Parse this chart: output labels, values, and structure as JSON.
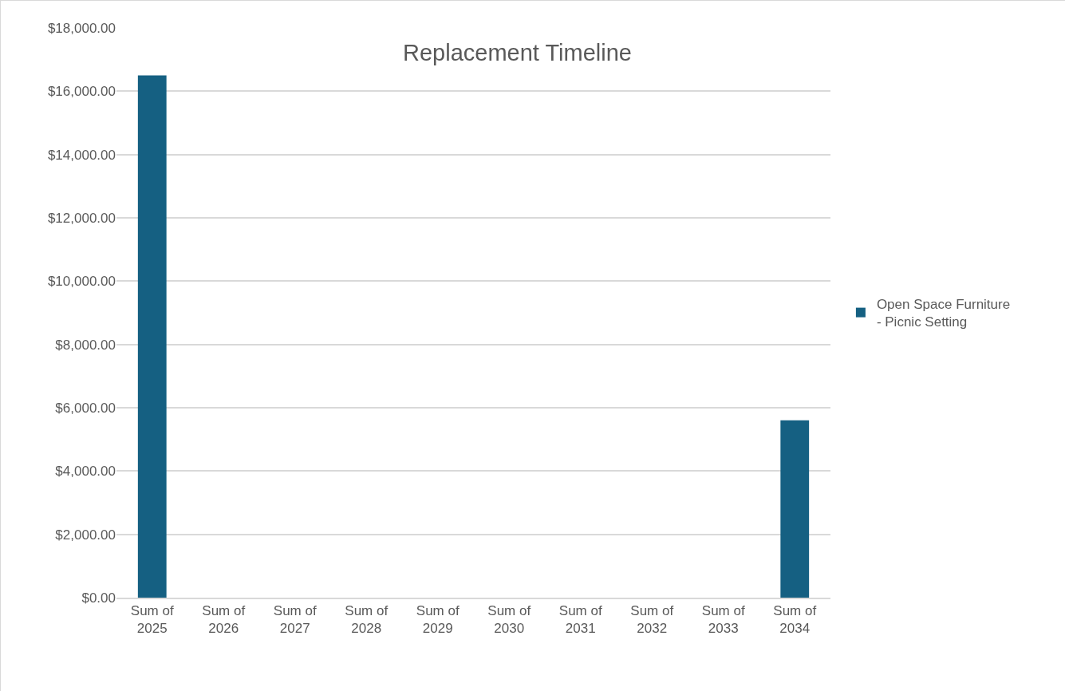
{
  "chart_data": {
    "type": "bar",
    "title": "Replacement Timeline",
    "categories": [
      "Sum of 2025",
      "Sum of 2026",
      "Sum of 2027",
      "Sum of 2028",
      "Sum of 2029",
      "Sum of 2030",
      "Sum of 2031",
      "Sum of 2032",
      "Sum of 2033",
      "Sum of 2034"
    ],
    "series": [
      {
        "name": "Open Space Furniture - Picnic Setting",
        "color": "#156082",
        "values": [
          16500,
          0,
          0,
          0,
          0,
          0,
          0,
          0,
          0,
          5600
        ]
      }
    ],
    "ylim": [
      0,
      18000
    ],
    "yticks": [
      {
        "value": 0,
        "label": "$0.00"
      },
      {
        "value": 2000,
        "label": "$2,000.00"
      },
      {
        "value": 4000,
        "label": "$4,000.00"
      },
      {
        "value": 6000,
        "label": "$6,000.00"
      },
      {
        "value": 8000,
        "label": "$8,000.00"
      },
      {
        "value": 10000,
        "label": "$10,000.00"
      },
      {
        "value": 12000,
        "label": "$12,000.00"
      },
      {
        "value": 14000,
        "label": "$14,000.00"
      },
      {
        "value": 16000,
        "label": "$16,000.00"
      },
      {
        "value": 18000,
        "label": "$18,000.00"
      }
    ],
    "grid": "y",
    "legend": "right"
  }
}
